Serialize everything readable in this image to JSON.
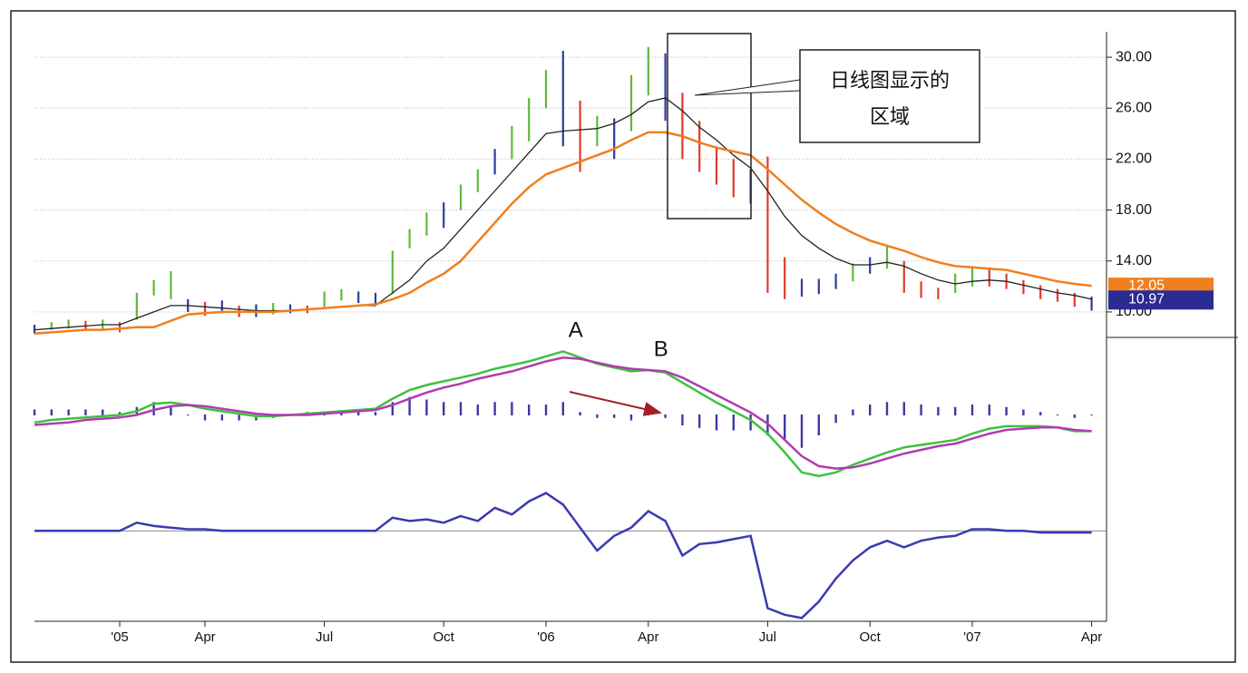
{
  "chart_data": [
    {
      "type": "price",
      "ylim": [
        8,
        32
      ],
      "yticks": [
        {
          "value": 10,
          "label": "10.00"
        },
        {
          "value": 14,
          "label": "14.00"
        },
        {
          "value": 18,
          "label": "18.00"
        },
        {
          "value": 22,
          "label": "22.00"
        },
        {
          "value": 26,
          "label": "26.00"
        },
        {
          "value": 30,
          "label": "30.00"
        }
      ],
      "grid": true,
      "high": [
        9.0,
        9.2,
        9.4,
        9.3,
        9.4,
        9.2,
        11.5,
        12.5,
        13.2,
        11.0,
        10.8,
        10.9,
        10.5,
        10.6,
        10.7,
        10.6,
        10.5,
        11.6,
        11.8,
        11.6,
        11.5,
        14.8,
        16.5,
        17.8,
        18.6,
        20.0,
        21.2,
        22.8,
        24.6,
        26.8,
        29.0,
        30.5,
        26.6,
        25.4,
        25.2,
        28.6,
        30.8,
        30.3,
        27.2,
        25.0,
        23.0,
        22.0,
        21.2,
        22.2,
        14.3,
        12.6,
        12.6,
        13.0,
        13.8,
        14.3,
        15.3,
        14.0,
        12.4,
        11.9,
        13.0,
        13.6,
        13.5,
        13.0,
        12.5,
        12.1,
        11.8,
        11.5,
        11.2
      ],
      "low": [
        8.3,
        8.6,
        8.7,
        8.5,
        8.6,
        8.4,
        9.4,
        11.3,
        11.0,
        10.0,
        9.7,
        9.9,
        9.6,
        9.6,
        9.8,
        9.9,
        9.9,
        10.4,
        10.9,
        10.7,
        10.6,
        11.4,
        15.0,
        16.0,
        16.6,
        18.0,
        19.4,
        20.8,
        22.0,
        23.4,
        26.0,
        23.0,
        21.0,
        23.0,
        22.0,
        24.2,
        27.0,
        25.0,
        22.0,
        21.0,
        20.0,
        19.0,
        18.5,
        11.5,
        11.0,
        11.2,
        11.4,
        11.8,
        12.4,
        13.0,
        13.4,
        11.5,
        11.1,
        11.0,
        11.5,
        12.0,
        12.0,
        11.8,
        11.4,
        11.0,
        10.8,
        10.4,
        10.1
      ],
      "bar_colors": [
        "#2e3c9c",
        "#5fb83c",
        "#5fb83c",
        "#e03b2c",
        "#5fb83c",
        "#e03b2c",
        "#5fb83c",
        "#5fb83c",
        "#5fb83c",
        "#2e3c9c",
        "#e03b2c",
        "#2e3c9c",
        "#e03b2c",
        "#2e3c9c",
        "#5fb83c",
        "#2e3c9c",
        "#e03b2c",
        "#5fb83c",
        "#5fb83c",
        "#2e3c9c",
        "#2e3c9c",
        "#5fb83c",
        "#5fb83c",
        "#5fb83c",
        "#2e3c9c",
        "#5fb83c",
        "#5fb83c",
        "#2e3c9c",
        "#5fb83c",
        "#5fb83c",
        "#5fb83c",
        "#2e3c9c",
        "#e03b2c",
        "#5fb83c",
        "#2e3c9c",
        "#5fb83c",
        "#5fb83c",
        "#2e3c9c",
        "#e03b2c",
        "#e03b2c",
        "#e03b2c",
        "#e03b2c",
        "#2e3c9c",
        "#e03b2c",
        "#e03b2c",
        "#2e3c9c",
        "#2e3c9c",
        "#2e3c9c",
        "#5fb83c",
        "#2e3c9c",
        "#5fb83c",
        "#e03b2c",
        "#e03b2c",
        "#e03b2c",
        "#5fb83c",
        "#5fb83c",
        "#e03b2c",
        "#e03b2c",
        "#e03b2c",
        "#e03b2c",
        "#e03b2c",
        "#e03b2c",
        "#2e3c9c"
      ],
      "series": [
        {
          "color": "#222222",
          "values": [
            8.6,
            8.7,
            8.8,
            8.9,
            9.0,
            9.0,
            9.5,
            10.0,
            10.5,
            10.5,
            10.4,
            10.3,
            10.2,
            10.1,
            10.1,
            10.1,
            10.2,
            10.3,
            10.4,
            10.5,
            10.5,
            11.5,
            12.5,
            14.0,
            15.0,
            16.5,
            18.0,
            19.5,
            21.0,
            22.5,
            24.0,
            24.2,
            24.3,
            24.4,
            24.8,
            25.5,
            26.5,
            26.8,
            25.8,
            24.5,
            23.5,
            22.3,
            21.3,
            19.5,
            17.5,
            16.0,
            15.0,
            14.2,
            13.7,
            13.7,
            13.9,
            13.6,
            13.0,
            12.5,
            12.2,
            12.4,
            12.5,
            12.4,
            12.1,
            11.8,
            11.5,
            11.3,
            11.0
          ]
        },
        {
          "color": "#f07f1e",
          "values": [
            8.3,
            8.4,
            8.5,
            8.6,
            8.6,
            8.7,
            8.8,
            8.8,
            9.3,
            9.8,
            9.9,
            10.0,
            10.0,
            10.0,
            10.0,
            10.1,
            10.2,
            10.3,
            10.4,
            10.5,
            10.6,
            11.0,
            11.5,
            12.3,
            13.0,
            14.0,
            15.5,
            17.0,
            18.5,
            19.8,
            20.8,
            21.3,
            21.8,
            22.3,
            22.8,
            23.5,
            24.1,
            24.1,
            23.8,
            23.3,
            22.9,
            22.6,
            22.3,
            21.2,
            20.0,
            18.8,
            17.8,
            16.9,
            16.2,
            15.6,
            15.2,
            14.8,
            14.3,
            13.9,
            13.6,
            13.5,
            13.4,
            13.3,
            13.0,
            12.7,
            12.4,
            12.2,
            12.05
          ]
        }
      ],
      "last_close": 10.97,
      "last_close_color": "#2b2b94",
      "annotation": [
        "日线图显示的",
        "区域"
      ]
    },
    {
      "type": "macd",
      "ylim": [
        -6,
        6
      ],
      "series": [
        {
          "color": "#3cc23c",
          "values": [
            -0.6,
            -0.4,
            -0.3,
            -0.2,
            -0.1,
            0,
            0.3,
            0.9,
            1.0,
            0.8,
            0.5,
            0.3,
            0.1,
            -0.1,
            -0.1,
            0,
            0.1,
            0.2,
            0.3,
            0.4,
            0.5,
            1.3,
            2.0,
            2.4,
            2.7,
            3.0,
            3.3,
            3.7,
            4.0,
            4.3,
            4.7,
            5.1,
            4.6,
            4.1,
            3.8,
            3.5,
            3.6,
            3.4,
            2.6,
            1.8,
            1.0,
            0.3,
            -0.4,
            -1.5,
            -3.0,
            -4.6,
            -4.9,
            -4.6,
            -4.0,
            -3.5,
            -3.0,
            -2.6,
            -2.4,
            -2.2,
            -2.0,
            -1.5,
            -1.1,
            -0.9,
            -0.9,
            -0.9,
            -1.0,
            -1.3,
            -1.3
          ]
        },
        {
          "color": "#b03cb0",
          "values": [
            -0.8,
            -0.7,
            -0.6,
            -0.4,
            -0.3,
            -0.2,
            0.0,
            0.4,
            0.7,
            0.8,
            0.7,
            0.5,
            0.3,
            0.1,
            0,
            0,
            0,
            0.1,
            0.2,
            0.3,
            0.4,
            0.8,
            1.3,
            1.8,
            2.2,
            2.5,
            2.9,
            3.2,
            3.5,
            3.9,
            4.3,
            4.6,
            4.5,
            4.2,
            3.9,
            3.7,
            3.6,
            3.5,
            3.0,
            2.3,
            1.6,
            0.9,
            0.2,
            -0.7,
            -2.0,
            -3.3,
            -4.1,
            -4.3,
            -4.2,
            -3.9,
            -3.5,
            -3.1,
            -2.8,
            -2.5,
            -2.3,
            -1.9,
            -1.5,
            -1.2,
            -1.1,
            -1.0,
            -1.0,
            -1.2,
            -1.3
          ]
        },
        {
          "color": "#3a3aa0",
          "style": "histogram",
          "values": [
            0.4,
            0.4,
            0.4,
            0.4,
            0.4,
            0.2,
            0.6,
            1.0,
            0.6,
            0,
            -0.4,
            -0.4,
            -0.4,
            -0.4,
            -0.2,
            0,
            0.2,
            0.2,
            0.2,
            0.2,
            0.2,
            1.0,
            1.4,
            1.2,
            1.0,
            1.0,
            0.8,
            1.0,
            1.0,
            0.8,
            0.8,
            1.0,
            0.2,
            -0.2,
            -0.2,
            -0.4,
            0,
            -0.2,
            -0.8,
            -1.0,
            -1.2,
            -1.2,
            -1.2,
            -1.6,
            -2.0,
            -2.6,
            -1.6,
            -0.6,
            0.4,
            0.8,
            1.0,
            1.0,
            0.8,
            0.6,
            0.6,
            0.8,
            0.8,
            0.6,
            0.4,
            0.2,
            0,
            -0.2,
            0
          ]
        }
      ],
      "annotations": [
        {
          "text": "A",
          "index": 31
        },
        {
          "text": "B",
          "index": 36
        }
      ]
    },
    {
      "type": "line",
      "ylim": [
        -5.5,
        2.5
      ],
      "hline": 0,
      "series": [
        {
          "color": "#3a3ab0",
          "values": [
            0,
            0,
            0,
            0,
            0,
            0,
            0.5,
            0.3,
            0.2,
            0.1,
            0.1,
            0,
            0,
            0,
            0,
            0,
            0,
            0,
            0,
            0,
            0,
            0.8,
            0.6,
            0.7,
            0.5,
            0.9,
            0.6,
            1.4,
            1.0,
            1.8,
            2.3,
            1.6,
            0.2,
            -1.2,
            -0.3,
            0.2,
            1.2,
            0.6,
            -1.5,
            -0.8,
            -0.7,
            -0.5,
            -0.3,
            -4.7,
            -5.1,
            -5.3,
            -4.3,
            -2.9,
            -1.8,
            -1.0,
            -0.6,
            -1.0,
            -0.6,
            -0.4,
            -0.3,
            0.1,
            0.1,
            0,
            0,
            -0.1,
            -0.1,
            -0.1,
            -0.1
          ]
        }
      ],
      "categories": [
        null,
        null,
        null,
        null,
        null,
        "'05",
        null,
        null,
        null,
        null,
        "Apr",
        null,
        null,
        null,
        null,
        null,
        null,
        "Jul",
        null,
        null,
        null,
        null,
        null,
        null,
        "Oct",
        null,
        null,
        null,
        null,
        null,
        "'06",
        null,
        null,
        null,
        null,
        null,
        "Apr",
        null,
        null,
        null,
        null,
        null,
        null,
        "Jul",
        null,
        null,
        null,
        null,
        null,
        "Oct",
        null,
        null,
        null,
        null,
        null,
        "'07",
        null,
        null,
        null,
        null,
        null,
        null,
        "Apr"
      ]
    }
  ]
}
